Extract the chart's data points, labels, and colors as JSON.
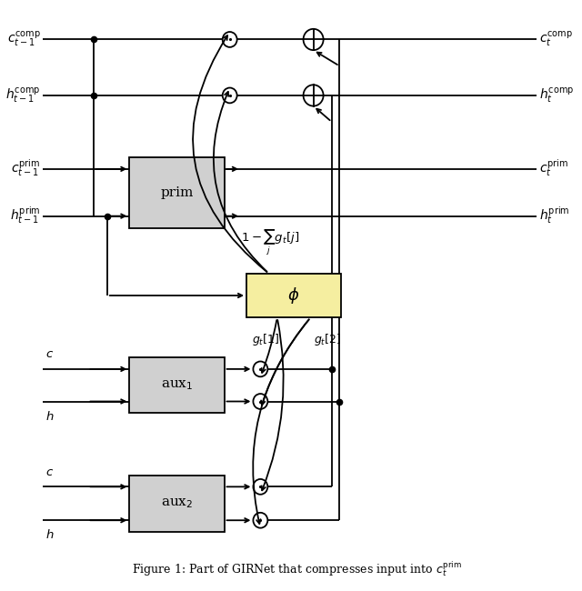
{
  "fig_width": 6.4,
  "fig_height": 6.5,
  "bg_color": "#ffffff",
  "box_gray": "#d0d0d0",
  "box_yellow": "#f5eea0",
  "lw": 1.3,
  "odot_r": 0.013,
  "oplus_r": 0.018,
  "dot_s": 4.5,
  "caption": "Figure 1: Part of GIRNet that compresses input into $c_t^{\\rm prim}$"
}
